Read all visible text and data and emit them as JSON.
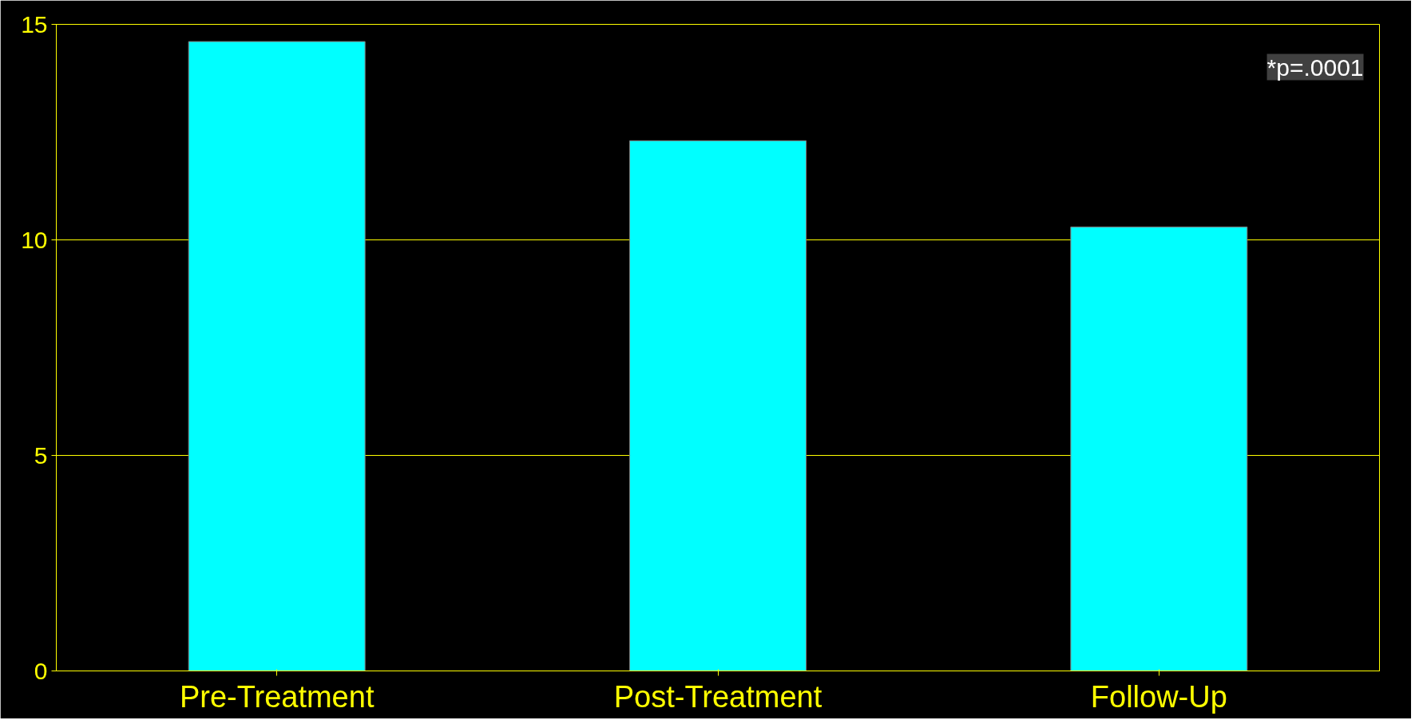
{
  "chart_data": {
    "type": "bar",
    "categories": [
      "Pre-Treatment",
      "Post-Treatment",
      "Follow-Up"
    ],
    "values": [
      14.6,
      12.3,
      10.3
    ],
    "color": "#00ffff",
    "ylim": [
      0,
      15
    ],
    "yticks": [
      0,
      5,
      10,
      15
    ],
    "grid": "y",
    "annotations": [
      "*p=.0001"
    ]
  }
}
